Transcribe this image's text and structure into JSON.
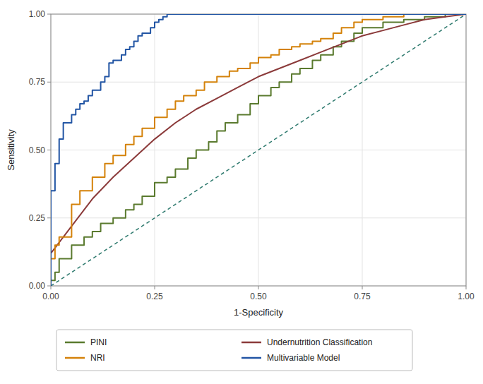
{
  "chart_data": {
    "type": "line",
    "xlabel": "1-Specificity",
    "ylabel": "Sensitivity",
    "xlim": [
      0.0,
      1.0
    ],
    "ylim": [
      0.0,
      1.0
    ],
    "xticks": [
      {
        "value": 0.0,
        "label": "0.00"
      },
      {
        "value": 0.25,
        "label": "0.25"
      },
      {
        "value": 0.5,
        "label": "0.50"
      },
      {
        "value": 0.75,
        "label": "0.75"
      },
      {
        "value": 1.0,
        "label": "1.00"
      }
    ],
    "yticks": [
      {
        "value": 0.0,
        "label": "0.00"
      },
      {
        "value": 0.25,
        "label": "0.25"
      },
      {
        "value": 0.5,
        "label": "0.50"
      },
      {
        "value": 0.75,
        "label": "0.75"
      },
      {
        "value": 1.0,
        "label": "1.00"
      }
    ],
    "grid": true,
    "legend": "bottom",
    "reference_line": {
      "x": [
        0,
        1
      ],
      "y": [
        0,
        1
      ],
      "color": "#2e7a6e"
    },
    "series": [
      {
        "name": "PINI",
        "type": "step",
        "color": "#5a7a2e",
        "x": [
          0.0,
          0.0,
          0.01,
          0.01,
          0.02,
          0.02,
          0.05,
          0.05,
          0.08,
          0.08,
          0.1,
          0.1,
          0.12,
          0.12,
          0.15,
          0.15,
          0.18,
          0.18,
          0.2,
          0.2,
          0.22,
          0.22,
          0.25,
          0.25,
          0.28,
          0.28,
          0.3,
          0.3,
          0.33,
          0.33,
          0.35,
          0.35,
          0.38,
          0.38,
          0.4,
          0.4,
          0.42,
          0.42,
          0.45,
          0.45,
          0.48,
          0.48,
          0.5,
          0.5,
          0.53,
          0.53,
          0.55,
          0.55,
          0.58,
          0.58,
          0.6,
          0.6,
          0.63,
          0.63,
          0.65,
          0.65,
          0.68,
          0.68,
          0.7,
          0.7,
          0.73,
          0.73,
          0.75,
          0.75,
          0.8,
          0.8,
          0.85,
          0.85,
          0.9,
          0.9,
          0.95,
          0.95,
          1.0,
          1.0
        ],
        "values": [
          0.0,
          0.02,
          0.02,
          0.05,
          0.05,
          0.1,
          0.1,
          0.15,
          0.15,
          0.18,
          0.18,
          0.2,
          0.2,
          0.23,
          0.23,
          0.25,
          0.25,
          0.28,
          0.28,
          0.3,
          0.3,
          0.33,
          0.33,
          0.38,
          0.38,
          0.4,
          0.4,
          0.43,
          0.43,
          0.47,
          0.47,
          0.5,
          0.5,
          0.53,
          0.53,
          0.57,
          0.57,
          0.6,
          0.6,
          0.63,
          0.63,
          0.67,
          0.67,
          0.7,
          0.7,
          0.73,
          0.73,
          0.75,
          0.75,
          0.78,
          0.78,
          0.8,
          0.8,
          0.83,
          0.83,
          0.85,
          0.85,
          0.88,
          0.88,
          0.9,
          0.9,
          0.93,
          0.93,
          0.95,
          0.95,
          0.97,
          0.97,
          0.98,
          0.98,
          0.99,
          0.99,
          1.0,
          1.0,
          1.0
        ]
      },
      {
        "name": "Undernutrition Classification",
        "type": "line",
        "color": "#8b3a3a",
        "x": [
          0.0,
          0.0,
          0.05,
          0.1,
          0.15,
          0.2,
          0.25,
          0.3,
          0.35,
          0.4,
          0.45,
          0.5,
          0.55,
          0.6,
          0.65,
          0.7,
          0.75,
          0.8,
          0.85,
          0.9,
          0.95,
          1.0
        ],
        "values": [
          0.0,
          0.12,
          0.22,
          0.32,
          0.4,
          0.47,
          0.54,
          0.6,
          0.65,
          0.69,
          0.73,
          0.77,
          0.8,
          0.83,
          0.86,
          0.89,
          0.92,
          0.94,
          0.96,
          0.98,
          0.99,
          1.0
        ]
      },
      {
        "name": "NRI",
        "type": "step",
        "color": "#d4820a",
        "x": [
          0.0,
          0.0,
          0.01,
          0.01,
          0.02,
          0.02,
          0.05,
          0.05,
          0.07,
          0.07,
          0.1,
          0.1,
          0.13,
          0.13,
          0.15,
          0.15,
          0.18,
          0.18,
          0.2,
          0.2,
          0.22,
          0.22,
          0.25,
          0.25,
          0.28,
          0.28,
          0.3,
          0.3,
          0.32,
          0.32,
          0.35,
          0.35,
          0.37,
          0.37,
          0.4,
          0.4,
          0.43,
          0.43,
          0.45,
          0.45,
          0.48,
          0.48,
          0.5,
          0.5,
          0.53,
          0.53,
          0.55,
          0.55,
          0.58,
          0.58,
          0.6,
          0.6,
          0.63,
          0.63,
          0.65,
          0.65,
          0.68,
          0.68,
          0.7,
          0.7,
          0.73,
          0.73,
          0.75,
          0.75,
          0.8,
          0.8,
          0.85,
          0.85,
          0.9,
          0.9,
          0.95,
          0.95,
          1.0,
          1.0
        ],
        "values": [
          0.0,
          0.1,
          0.1,
          0.15,
          0.15,
          0.18,
          0.18,
          0.3,
          0.3,
          0.35,
          0.35,
          0.4,
          0.4,
          0.45,
          0.45,
          0.48,
          0.48,
          0.52,
          0.52,
          0.55,
          0.55,
          0.58,
          0.58,
          0.62,
          0.62,
          0.65,
          0.65,
          0.68,
          0.68,
          0.7,
          0.7,
          0.72,
          0.72,
          0.75,
          0.75,
          0.77,
          0.77,
          0.79,
          0.79,
          0.8,
          0.8,
          0.82,
          0.82,
          0.84,
          0.84,
          0.85,
          0.85,
          0.87,
          0.87,
          0.88,
          0.88,
          0.89,
          0.89,
          0.9,
          0.9,
          0.91,
          0.91,
          0.93,
          0.93,
          0.95,
          0.95,
          0.97,
          0.97,
          0.98,
          0.98,
          0.99,
          0.99,
          1.0,
          1.0,
          1.0,
          1.0,
          1.0,
          1.0,
          1.0
        ]
      },
      {
        "name": "Multivariable Model",
        "type": "step",
        "color": "#2255a4",
        "x": [
          0.0,
          0.0,
          0.0,
          0.0,
          0.0,
          0.0,
          0.01,
          0.01,
          0.01,
          0.02,
          0.02,
          0.02,
          0.02,
          0.03,
          0.03,
          0.03,
          0.05,
          0.05,
          0.06,
          0.06,
          0.07,
          0.07,
          0.08,
          0.08,
          0.09,
          0.09,
          0.1,
          0.1,
          0.11,
          0.12,
          0.12,
          0.12,
          0.13,
          0.13,
          0.14,
          0.14,
          0.14,
          0.14,
          0.15,
          0.15,
          0.17,
          0.17,
          0.18,
          0.18,
          0.19,
          0.19,
          0.2,
          0.2,
          0.21,
          0.21,
          0.22,
          0.22,
          0.24,
          0.24,
          0.25,
          0.25,
          0.26,
          0.26,
          0.27,
          0.27,
          0.28,
          0.28,
          0.55,
          0.55,
          0.58,
          0.58,
          0.62,
          0.62,
          0.65,
          0.65,
          0.67,
          0.67,
          0.7,
          0.7,
          0.73,
          0.73,
          0.77,
          0.77,
          0.8,
          0.8,
          0.83,
          0.83,
          0.87,
          0.87,
          0.9,
          0.9,
          0.93,
          0.93,
          0.97,
          0.97,
          1.0,
          1.0
        ],
        "values": [
          0.0,
          0.13,
          0.2,
          0.25,
          0.3,
          0.35,
          0.35,
          0.4,
          0.45,
          0.45,
          0.5,
          0.52,
          0.54,
          0.54,
          0.57,
          0.6,
          0.6,
          0.63,
          0.63,
          0.65,
          0.65,
          0.67,
          0.67,
          0.68,
          0.68,
          0.7,
          0.7,
          0.72,
          0.72,
          0.72,
          0.73,
          0.75,
          0.75,
          0.77,
          0.77,
          0.78,
          0.8,
          0.82,
          0.82,
          0.83,
          0.83,
          0.85,
          0.85,
          0.87,
          0.87,
          0.88,
          0.88,
          0.9,
          0.9,
          0.92,
          0.92,
          0.93,
          0.93,
          0.95,
          0.95,
          0.97,
          0.97,
          0.98,
          0.98,
          0.99,
          0.99,
          1.0,
          1.0,
          1.0,
          1.0,
          1.0,
          1.0,
          1.0,
          1.0,
          1.0,
          1.0,
          1.0,
          1.0,
          1.0,
          1.0,
          1.0,
          1.0,
          1.0,
          1.0,
          1.0,
          1.0,
          1.0,
          1.0,
          1.0,
          1.0,
          1.0,
          1.0,
          1.0,
          1.0,
          1.0,
          1.0,
          1.0
        ]
      }
    ]
  }
}
